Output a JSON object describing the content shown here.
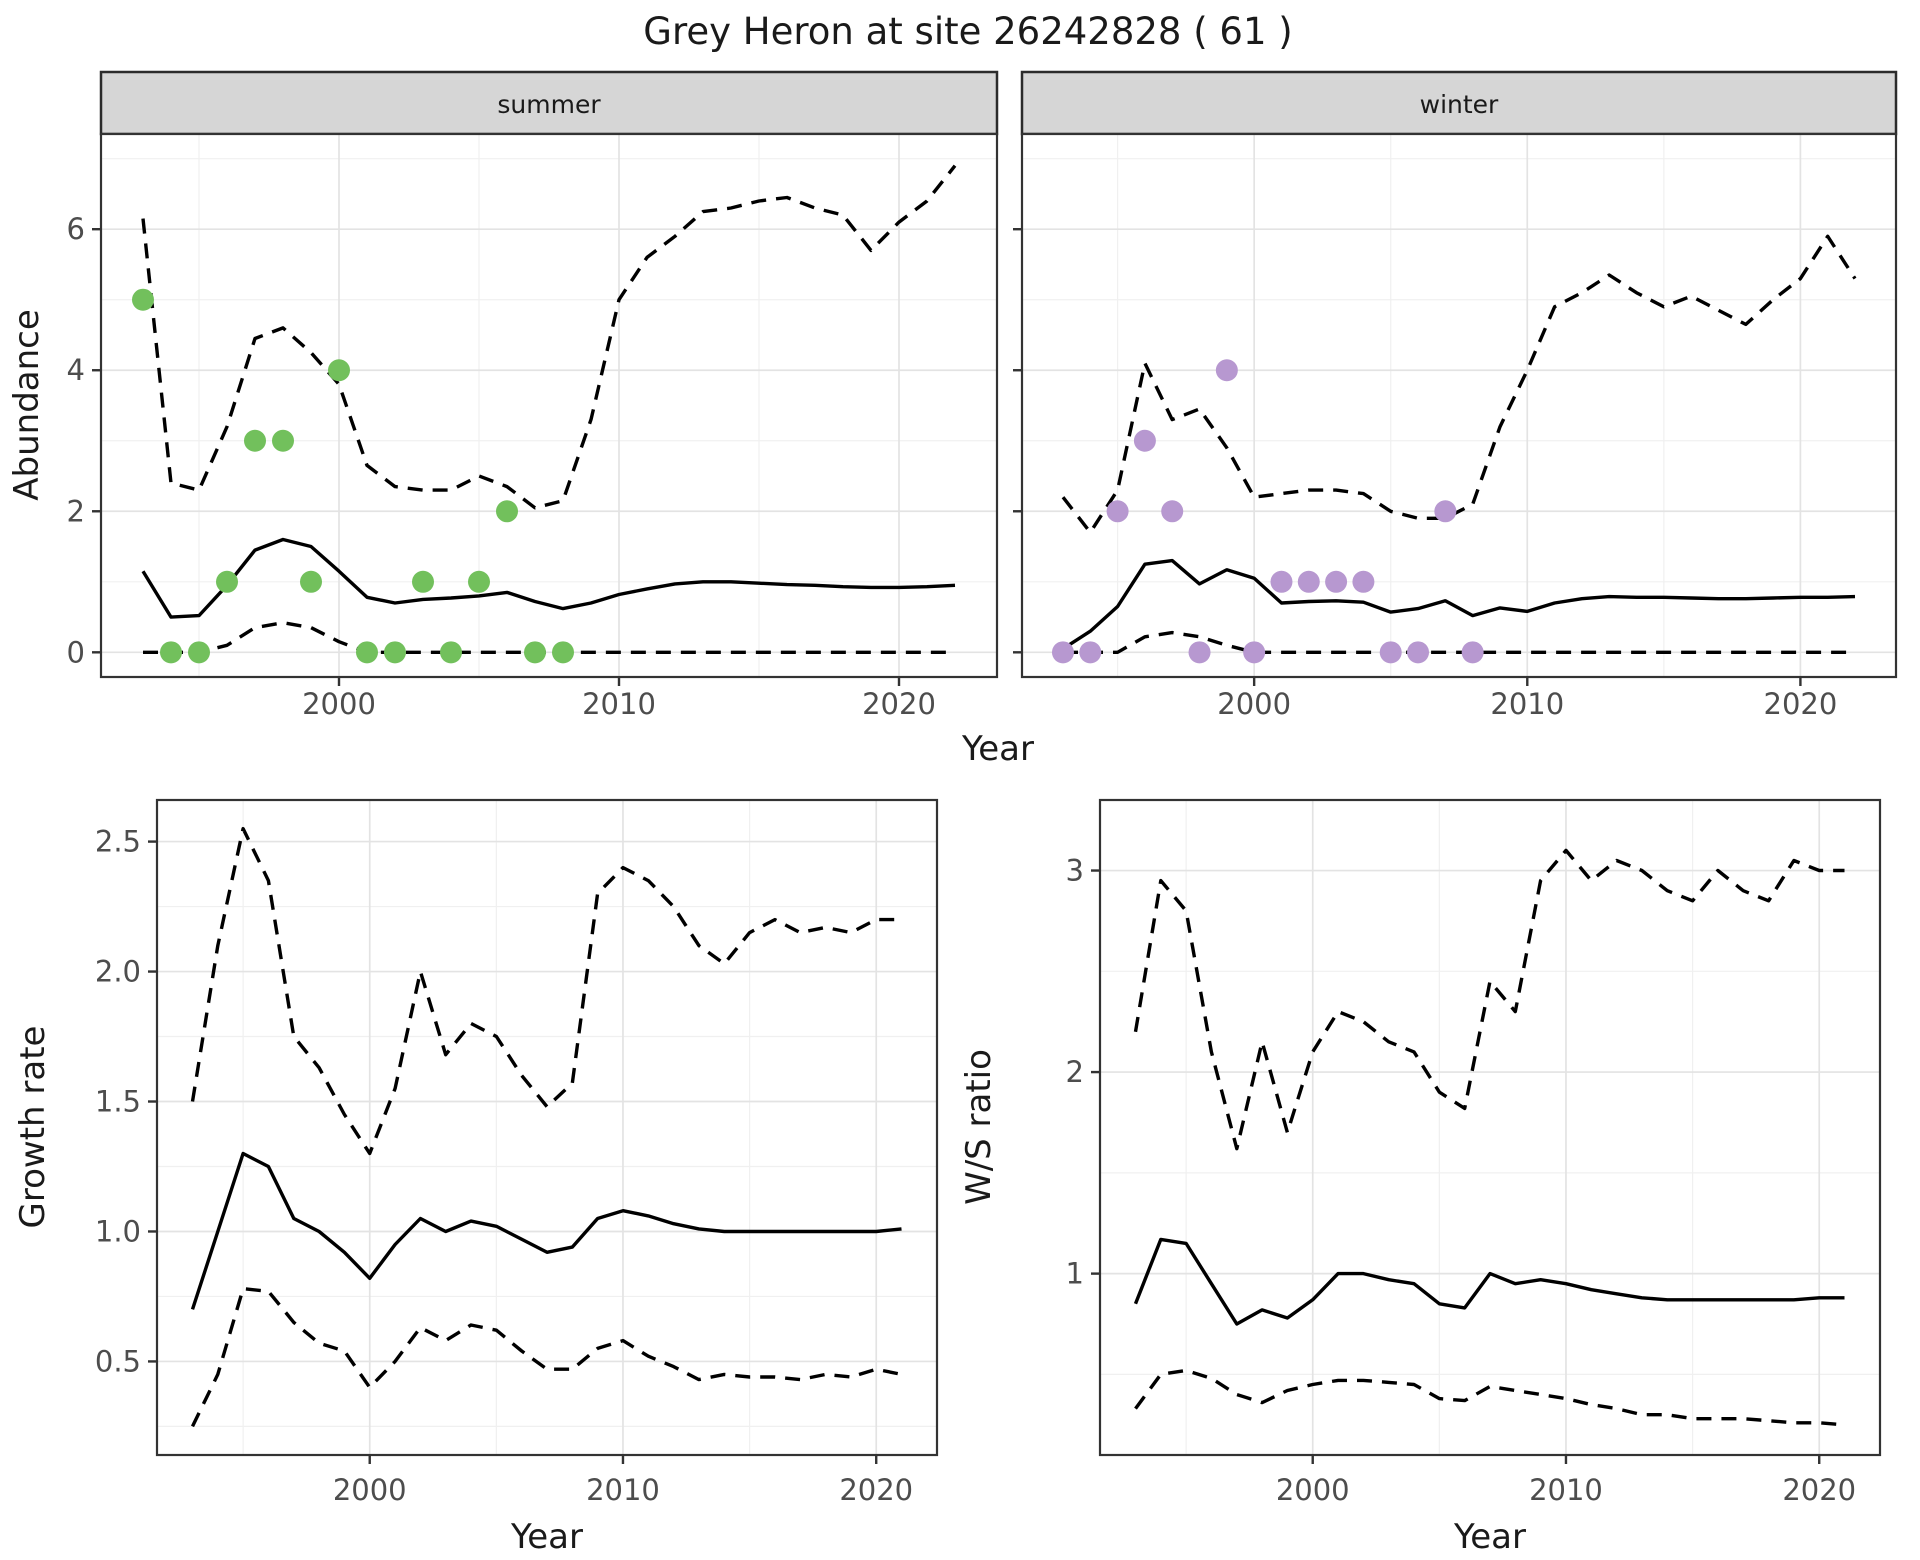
{
  "title": "Grey Heron at site 26242828 ( 61 )",
  "axes": {
    "abundance": "Abundance",
    "year": "Year",
    "growth": "Growth rate",
    "ws": "W/S ratio"
  },
  "colors": {
    "summer_points": "#72c05c",
    "winter_points": "#b798d0",
    "line": "#000000",
    "strip_bg": "#d6d6d6",
    "panel_bg": "#ffffff",
    "grid_major": "#e3e3e3",
    "grid_minor": "#f0f0f0",
    "panel_border": "#333333",
    "tick_text": "#4d4d4d",
    "tick_mark": "#333333"
  },
  "chart_data": [
    {
      "id": "summer",
      "type": "line",
      "facet_label": "summer",
      "x": [
        1993,
        1994,
        1995,
        1996,
        1997,
        1998,
        1999,
        2000,
        2001,
        2002,
        2003,
        2004,
        2005,
        2006,
        2007,
        2008,
        2009,
        2010,
        2011,
        2012,
        2013,
        2014,
        2015,
        2016,
        2017,
        2018,
        2019,
        2020,
        2021,
        2022
      ],
      "series": [
        {
          "name": "upper_ci",
          "style": "dashed",
          "values": [
            6.15,
            2.4,
            2.3,
            3.2,
            4.45,
            4.6,
            4.25,
            3.8,
            2.65,
            2.35,
            2.3,
            2.3,
            2.5,
            2.35,
            2.05,
            2.15,
            3.3,
            5.0,
            5.6,
            5.9,
            6.25,
            6.3,
            6.4,
            6.45,
            6.3,
            6.2,
            5.7,
            6.1,
            6.4,
            6.9
          ]
        },
        {
          "name": "median",
          "style": "solid",
          "values": [
            1.15,
            0.5,
            0.52,
            0.95,
            1.45,
            1.6,
            1.5,
            1.15,
            0.78,
            0.7,
            0.75,
            0.77,
            0.8,
            0.85,
            0.72,
            0.62,
            0.7,
            0.82,
            0.9,
            0.97,
            1.0,
            1.0,
            0.98,
            0.96,
            0.95,
            0.93,
            0.92,
            0.92,
            0.93,
            0.95
          ]
        },
        {
          "name": "lower_ci",
          "style": "dashed",
          "values": [
            0,
            0,
            0,
            0.1,
            0.35,
            0.42,
            0.35,
            0.15,
            0,
            0,
            0,
            0,
            0,
            0,
            0,
            0,
            0,
            0,
            0,
            0,
            0,
            0,
            0,
            0,
            0,
            0,
            0,
            0,
            0,
            0
          ]
        }
      ],
      "points": {
        "name": "observed_counts",
        "color_key": "summer_points",
        "xy": [
          [
            1993,
            5
          ],
          [
            1994,
            0
          ],
          [
            1995,
            0
          ],
          [
            1996,
            1
          ],
          [
            1997,
            3
          ],
          [
            1998,
            3
          ],
          [
            1999,
            1
          ],
          [
            2000,
            4
          ],
          [
            2001,
            0
          ],
          [
            2002,
            0
          ],
          [
            2003,
            1
          ],
          [
            2004,
            0
          ],
          [
            2005,
            1
          ],
          [
            2006,
            2
          ],
          [
            2007,
            0
          ],
          [
            2008,
            0
          ]
        ]
      },
      "xlabel": "Year",
      "ylabel": "Abundance",
      "xlim": [
        1991.5,
        2023.5
      ],
      "ylim": [
        -0.35,
        7.35
      ],
      "xticks": {
        "major": [
          2000,
          2010,
          2020
        ],
        "minor": [
          1995,
          2005,
          2015
        ],
        "labels": [
          "2000",
          "2010",
          "2020"
        ]
      },
      "yticks": {
        "major": [
          0,
          2,
          4,
          6
        ],
        "minor": [
          1,
          3,
          5,
          7
        ],
        "labels": [
          "0",
          "2",
          "4",
          "6"
        ],
        "show_labels": true
      }
    },
    {
      "id": "winter",
      "type": "line",
      "facet_label": "winter",
      "x": [
        1993,
        1994,
        1995,
        1996,
        1997,
        1998,
        1999,
        2000,
        2001,
        2002,
        2003,
        2004,
        2005,
        2006,
        2007,
        2008,
        2009,
        2010,
        2011,
        2012,
        2013,
        2014,
        2015,
        2016,
        2017,
        2018,
        2019,
        2020,
        2021,
        2022
      ],
      "series": [
        {
          "name": "upper_ci",
          "style": "dashed",
          "values": [
            2.2,
            1.7,
            2.3,
            4.1,
            3.3,
            3.45,
            2.9,
            2.2,
            2.25,
            2.3,
            2.3,
            2.25,
            2.0,
            1.9,
            1.9,
            2.1,
            3.2,
            4.0,
            4.9,
            5.1,
            5.35,
            5.1,
            4.9,
            5.05,
            4.85,
            4.65,
            5.0,
            5.3,
            5.9,
            5.3
          ]
        },
        {
          "name": "median",
          "style": "solid",
          "values": [
            0.05,
            0.3,
            0.65,
            1.25,
            1.3,
            0.97,
            1.17,
            1.05,
            0.7,
            0.72,
            0.73,
            0.71,
            0.57,
            0.62,
            0.73,
            0.52,
            0.63,
            0.58,
            0.7,
            0.76,
            0.79,
            0.78,
            0.78,
            0.77,
            0.76,
            0.76,
            0.77,
            0.78,
            0.78,
            0.79
          ]
        },
        {
          "name": "lower_ci",
          "style": "dashed",
          "values": [
            0,
            0,
            0,
            0.22,
            0.28,
            0.22,
            0.1,
            0,
            0,
            0,
            0,
            0,
            0,
            0,
            0,
            0,
            0,
            0,
            0,
            0,
            0,
            0,
            0,
            0,
            0,
            0,
            0,
            0,
            0,
            0
          ]
        }
      ],
      "points": {
        "name": "observed_counts",
        "color_key": "winter_points",
        "xy": [
          [
            1993,
            0
          ],
          [
            1994,
            0
          ],
          [
            1995,
            2
          ],
          [
            1996,
            3
          ],
          [
            1997,
            2
          ],
          [
            1998,
            0
          ],
          [
            1999,
            4
          ],
          [
            2000,
            0
          ],
          [
            2001,
            1
          ],
          [
            2002,
            1
          ],
          [
            2003,
            1
          ],
          [
            2004,
            1
          ],
          [
            2005,
            0
          ],
          [
            2006,
            0
          ],
          [
            2007,
            2
          ],
          [
            2008,
            0
          ]
        ]
      },
      "xlabel": "Year",
      "ylabel": "Abundance",
      "xlim": [
        1991.5,
        2023.5
      ],
      "ylim": [
        -0.35,
        7.35
      ],
      "xticks": {
        "major": [
          2000,
          2010,
          2020
        ],
        "minor": [
          1995,
          2005,
          2015
        ],
        "labels": [
          "2000",
          "2010",
          "2020"
        ]
      },
      "yticks": {
        "major": [
          0,
          2,
          4,
          6
        ],
        "minor": [
          1,
          3,
          5,
          7
        ],
        "labels": [
          "0",
          "2",
          "4",
          "6"
        ],
        "show_labels": false
      }
    },
    {
      "id": "growth",
      "type": "line",
      "facet_label": "",
      "x": [
        1993,
        1994,
        1995,
        1996,
        1997,
        1998,
        1999,
        2000,
        2001,
        2002,
        2003,
        2004,
        2005,
        2006,
        2007,
        2008,
        2009,
        2010,
        2011,
        2012,
        2013,
        2014,
        2015,
        2016,
        2017,
        2018,
        2019,
        2020,
        2021
      ],
      "series": [
        {
          "name": "upper_ci",
          "style": "dashed",
          "values": [
            1.5,
            2.1,
            2.55,
            2.35,
            1.75,
            1.63,
            1.45,
            1.3,
            1.55,
            2.0,
            1.68,
            1.8,
            1.75,
            1.6,
            1.48,
            1.57,
            2.3,
            2.4,
            2.35,
            2.25,
            2.1,
            2.03,
            2.15,
            2.2,
            2.15,
            2.17,
            2.15,
            2.2,
            2.2
          ]
        },
        {
          "name": "median",
          "style": "solid",
          "values": [
            0.7,
            1.0,
            1.3,
            1.25,
            1.05,
            1.0,
            0.92,
            0.82,
            0.95,
            1.05,
            1.0,
            1.04,
            1.02,
            0.97,
            0.92,
            0.94,
            1.05,
            1.08,
            1.06,
            1.03,
            1.01,
            1.0,
            1.0,
            1.0,
            1.0,
            1.0,
            1.0,
            1.0,
            1.01
          ]
        },
        {
          "name": "lower_ci",
          "style": "dashed",
          "values": [
            0.25,
            0.45,
            0.78,
            0.77,
            0.65,
            0.57,
            0.54,
            0.4,
            0.5,
            0.63,
            0.58,
            0.64,
            0.62,
            0.54,
            0.47,
            0.47,
            0.55,
            0.58,
            0.52,
            0.48,
            0.43,
            0.45,
            0.44,
            0.44,
            0.43,
            0.45,
            0.44,
            0.47,
            0.45
          ]
        }
      ],
      "points": null,
      "xlabel": "Year",
      "ylabel": "Growth rate",
      "xlim": [
        1991.6,
        2022.4
      ],
      "ylim": [
        0.14,
        2.66
      ],
      "xticks": {
        "major": [
          2000,
          2010,
          2020
        ],
        "minor": [
          1995,
          2005,
          2015
        ],
        "labels": [
          "2000",
          "2010",
          "2020"
        ]
      },
      "yticks": {
        "major": [
          0.5,
          1.0,
          1.5,
          2.0,
          2.5
        ],
        "minor": [
          0.25,
          0.75,
          1.25,
          1.75,
          2.25
        ],
        "labels": [
          "0.5",
          "1.0",
          "1.5",
          "2.0",
          "2.5"
        ],
        "show_labels": true
      }
    },
    {
      "id": "ws",
      "type": "line",
      "facet_label": "",
      "x": [
        1993,
        1994,
        1995,
        1996,
        1997,
        1998,
        1999,
        2000,
        2001,
        2002,
        2003,
        2004,
        2005,
        2006,
        2007,
        2008,
        2009,
        2010,
        2011,
        2012,
        2013,
        2014,
        2015,
        2016,
        2017,
        2018,
        2019,
        2020,
        2021
      ],
      "series": [
        {
          "name": "upper_ci",
          "style": "dashed",
          "values": [
            2.2,
            2.95,
            2.8,
            2.1,
            1.62,
            2.15,
            1.7,
            2.1,
            2.3,
            2.25,
            2.15,
            2.1,
            1.9,
            1.82,
            2.45,
            2.3,
            2.95,
            3.1,
            2.95,
            3.05,
            3.0,
            2.9,
            2.85,
            3.0,
            2.9,
            2.85,
            3.05,
            3.0,
            3.0
          ]
        },
        {
          "name": "median",
          "style": "solid",
          "values": [
            0.85,
            1.17,
            1.15,
            0.95,
            0.75,
            0.82,
            0.78,
            0.87,
            1.0,
            1.0,
            0.97,
            0.95,
            0.85,
            0.83,
            1.0,
            0.95,
            0.97,
            0.95,
            0.92,
            0.9,
            0.88,
            0.87,
            0.87,
            0.87,
            0.87,
            0.87,
            0.87,
            0.88,
            0.88
          ]
        },
        {
          "name": "lower_ci",
          "style": "dashed",
          "values": [
            0.33,
            0.5,
            0.52,
            0.48,
            0.4,
            0.36,
            0.42,
            0.45,
            0.47,
            0.47,
            0.46,
            0.45,
            0.38,
            0.37,
            0.44,
            0.42,
            0.4,
            0.38,
            0.35,
            0.33,
            0.3,
            0.3,
            0.28,
            0.28,
            0.28,
            0.27,
            0.26,
            0.26,
            0.25
          ]
        }
      ],
      "points": null,
      "xlabel": "Year",
      "ylabel": "W/S ratio",
      "xlim": [
        1991.6,
        2022.4
      ],
      "ylim": [
        0.1,
        3.35
      ],
      "xticks": {
        "major": [
          2000,
          2010,
          2020
        ],
        "minor": [
          1995,
          2005,
          2015
        ],
        "labels": [
          "2000",
          "2010",
          "2020"
        ]
      },
      "yticks": {
        "major": [
          1,
          2,
          3
        ],
        "minor": [
          0.5,
          1.5,
          2.5
        ],
        "labels": [
          "1",
          "2",
          "3"
        ],
        "show_labels": true
      }
    }
  ]
}
